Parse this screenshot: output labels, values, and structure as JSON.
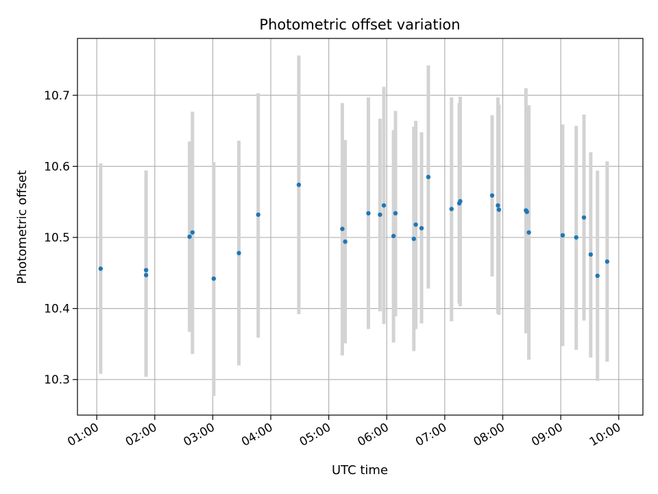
{
  "chart_data": {
    "type": "scatter",
    "title": "Photometric offset variation",
    "xlabel": "UTC time",
    "ylabel": "Photometric offset",
    "xlim": [
      "00:40",
      "10:25"
    ],
    "ylim": [
      10.25,
      10.78
    ],
    "grid": true,
    "x_ticks": [
      "01:00",
      "02:00",
      "03:00",
      "04:00",
      "05:00",
      "06:00",
      "07:00",
      "08:00",
      "09:00",
      "10:00"
    ],
    "y_ticks": [
      10.3,
      10.4,
      10.5,
      10.6,
      10.7
    ],
    "y_tick_labels": [
      "10.3",
      "10.4",
      "10.5",
      "10.6",
      "10.7"
    ],
    "colors": {
      "points": "#1f77b4",
      "errorbars": "#d3d3d3",
      "grid": "#b0b0b0",
      "axes": "#000000"
    },
    "series": [
      {
        "points": [
          {
            "x": "01:04",
            "y": 10.456,
            "ylow": 10.308,
            "yhigh": 10.604
          },
          {
            "x": "01:51",
            "y": 10.454,
            "ylow": 10.304,
            "yhigh": 10.594
          },
          {
            "x": "01:51",
            "y": 10.447,
            "ylow": 10.304,
            "yhigh": 10.594
          },
          {
            "x": "02:36",
            "y": 10.501,
            "ylow": 10.367,
            "yhigh": 10.635
          },
          {
            "x": "02:39",
            "y": 10.507,
            "ylow": 10.336,
            "yhigh": 10.677
          },
          {
            "x": "03:01",
            "y": 10.442,
            "ylow": 10.277,
            "yhigh": 10.606
          },
          {
            "x": "03:27",
            "y": 10.478,
            "ylow": 10.32,
            "yhigh": 10.636
          },
          {
            "x": "03:47",
            "y": 10.532,
            "ylow": 10.359,
            "yhigh": 10.703
          },
          {
            "x": "04:29",
            "y": 10.574,
            "ylow": 10.392,
            "yhigh": 10.756
          },
          {
            "x": "05:14",
            "y": 10.512,
            "ylow": 10.334,
            "yhigh": 10.689
          },
          {
            "x": "05:17",
            "y": 10.494,
            "ylow": 10.351,
            "yhigh": 10.637
          },
          {
            "x": "05:41",
            "y": 10.534,
            "ylow": 10.371,
            "yhigh": 10.697
          },
          {
            "x": "05:53",
            "y": 10.532,
            "ylow": 10.396,
            "yhigh": 10.667
          },
          {
            "x": "05:57",
            "y": 10.545,
            "ylow": 10.378,
            "yhigh": 10.712
          },
          {
            "x": "06:07",
            "y": 10.502,
            "ylow": 10.352,
            "yhigh": 10.651
          },
          {
            "x": "06:09",
            "y": 10.534,
            "ylow": 10.389,
            "yhigh": 10.678
          },
          {
            "x": "06:28",
            "y": 10.498,
            "ylow": 10.34,
            "yhigh": 10.656
          },
          {
            "x": "06:30",
            "y": 10.518,
            "ylow": 10.371,
            "yhigh": 10.664
          },
          {
            "x": "06:36",
            "y": 10.513,
            "ylow": 10.379,
            "yhigh": 10.648
          },
          {
            "x": "06:43",
            "y": 10.585,
            "ylow": 10.428,
            "yhigh": 10.742
          },
          {
            "x": "07:07",
            "y": 10.54,
            "ylow": 10.382,
            "yhigh": 10.697
          },
          {
            "x": "07:15",
            "y": 10.548,
            "ylow": 10.407,
            "yhigh": 10.689
          },
          {
            "x": "07:16",
            "y": 10.551,
            "ylow": 10.403,
            "yhigh": 10.698
          },
          {
            "x": "07:49",
            "y": 10.559,
            "ylow": 10.445,
            "yhigh": 10.672
          },
          {
            "x": "07:55",
            "y": 10.545,
            "ylow": 10.393,
            "yhigh": 10.697
          },
          {
            "x": "07:56",
            "y": 10.539,
            "ylow": 10.391,
            "yhigh": 10.687
          },
          {
            "x": "08:24",
            "y": 10.538,
            "ylow": 10.365,
            "yhigh": 10.71
          },
          {
            "x": "08:25",
            "y": 10.536,
            "ylow": 10.386,
            "yhigh": 10.686
          },
          {
            "x": "08:27",
            "y": 10.507,
            "ylow": 10.328,
            "yhigh": 10.686
          },
          {
            "x": "09:02",
            "y": 10.503,
            "ylow": 10.347,
            "yhigh": 10.659
          },
          {
            "x": "09:16",
            "y": 10.5,
            "ylow": 10.342,
            "yhigh": 10.657
          },
          {
            "x": "09:24",
            "y": 10.528,
            "ylow": 10.383,
            "yhigh": 10.673
          },
          {
            "x": "09:31",
            "y": 10.476,
            "ylow": 10.331,
            "yhigh": 10.62
          },
          {
            "x": "09:38",
            "y": 10.446,
            "ylow": 10.298,
            "yhigh": 10.594
          },
          {
            "x": "09:48",
            "y": 10.466,
            "ylow": 10.325,
            "yhigh": 10.607
          }
        ]
      }
    ]
  }
}
